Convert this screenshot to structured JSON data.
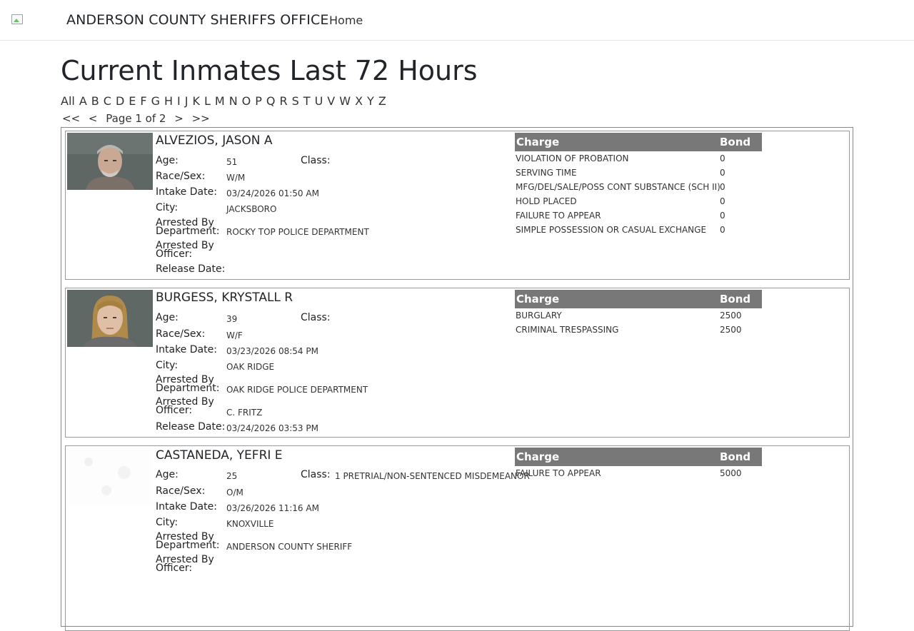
{
  "header": {
    "brand": "ANDERSON COUNTY SHERIFFS OFFICE",
    "nav_home": "Home"
  },
  "page": {
    "title": "Current Inmates Last 72 Hours",
    "letters": [
      "All",
      "A",
      "B",
      "C",
      "D",
      "E",
      "F",
      "G",
      "H",
      "I",
      "J",
      "K",
      "L",
      "M",
      "N",
      "O",
      "P",
      "Q",
      "R",
      "S",
      "T",
      "U",
      "V",
      "W",
      "X",
      "Y",
      "Z"
    ],
    "pager": {
      "first": "<<",
      "prev": "<",
      "status": "Page 1 of 2",
      "next": ">",
      "last": ">>"
    }
  },
  "labels": {
    "age": "Age:",
    "race_sex": "Race/Sex:",
    "intake_date": "Intake Date:",
    "city": "City:",
    "arrested_by_department": "Arrested By Department:",
    "arrested_by_officer": "Arrested By Officer:",
    "release_date": "Release Date:",
    "class": "Class:",
    "charge": "Charge",
    "bond": "Bond"
  },
  "inmates": [
    {
      "name": "ALVEZIOS, JASON A",
      "age": "51",
      "class": "",
      "race_sex": "W/M",
      "intake_date": "03/24/2026 01:50 AM",
      "city": "JACKSBORO",
      "department": "ROCKY TOP POLICE DEPARTMENT",
      "officer": "",
      "release_date": "",
      "charges": [
        {
          "charge": "VIOLATION OF PROBATION",
          "bond": "0"
        },
        {
          "charge": "SERVING TIME",
          "bond": "0"
        },
        {
          "charge": "MFG/DEL/SALE/POSS CONT SUBSTANCE (SCH II)",
          "bond": "0"
        },
        {
          "charge": "HOLD PLACED",
          "bond": "0"
        },
        {
          "charge": "FAILURE TO APPEAR",
          "bond": "0"
        },
        {
          "charge": "SIMPLE POSSESSION OR CASUAL EXCHANGE",
          "bond": "0"
        }
      ]
    },
    {
      "name": "BURGESS, KRYSTALL R",
      "age": "39",
      "class": "",
      "race_sex": "W/F",
      "intake_date": "03/23/2026 08:54 PM",
      "city": "OAK RIDGE",
      "department": "OAK RIDGE POLICE DEPARTMENT",
      "officer": "C. FRITZ",
      "release_date": "03/24/2026 03:53 PM",
      "charges": [
        {
          "charge": "BURGLARY",
          "bond": "2500"
        },
        {
          "charge": "CRIMINAL TRESPASSING",
          "bond": "2500"
        }
      ]
    },
    {
      "name": "CASTANEDA, YEFRI E",
      "age": "25",
      "class": "1 PRETRIAL/NON-SENTENCED MISDEMEANOR",
      "race_sex": "O/M",
      "intake_date": "03/26/2026 11:16 AM",
      "city": "KNOXVILLE",
      "department": "ANDERSON COUNTY SHERIFF",
      "officer": "",
      "release_date": "",
      "charges": [
        {
          "charge": "FAILURE TO APPEAR",
          "bond": "5000"
        }
      ]
    }
  ]
}
